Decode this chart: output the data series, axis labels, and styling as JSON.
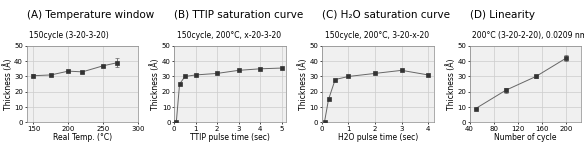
{
  "panel_A": {
    "title": "(A) Temperature window",
    "subtitle": "150cycle (3-20-3-20)",
    "x": [
      150,
      175,
      200,
      220,
      250,
      270
    ],
    "y": [
      30.5,
      31,
      33.5,
      33,
      37,
      39
    ],
    "yerr": [
      0.8,
      0.8,
      0.8,
      0.8,
      0.8,
      3
    ],
    "xlabel": "Real Temp. (°C)",
    "ylabel": "Thickness (Å)",
    "xlim": [
      140,
      295
    ],
    "ylim": [
      0,
      50
    ],
    "xticks": [
      150,
      200,
      250,
      300
    ],
    "yticks": [
      0,
      10,
      20,
      30,
      40,
      50
    ]
  },
  "panel_B": {
    "title": "(B) TTIP saturation curve",
    "subtitle": "150cycle, 200°C, x-20-3-20",
    "x": [
      0.1,
      0.25,
      0.5,
      1,
      2,
      3,
      4,
      5
    ],
    "y": [
      0.5,
      25,
      30,
      31,
      32,
      34,
      35,
      35.5
    ],
    "xlabel": "TTIP pulse time (sec)",
    "ylabel": "Thickness (Å)",
    "xlim": [
      0,
      5.2
    ],
    "ylim": [
      0,
      50
    ],
    "xticks": [
      0,
      1,
      2,
      3,
      4,
      5
    ],
    "yticks": [
      0,
      10,
      20,
      30,
      40,
      50
    ]
  },
  "panel_C": {
    "title": "(C) H₂O saturation curve",
    "subtitle": "150cycle, 200°C, 3-20-x-20",
    "x": [
      0.1,
      0.25,
      0.5,
      1,
      2,
      3,
      4
    ],
    "y": [
      0.5,
      15,
      28,
      30,
      32,
      34,
      31
    ],
    "xlabel": "H2O pulse time (sec)",
    "ylabel": "Thickness (Å)",
    "xlim": [
      0,
      4.2
    ],
    "ylim": [
      0,
      50
    ],
    "xticks": [
      0,
      1,
      2,
      3,
      4
    ],
    "yticks": [
      0,
      10,
      20,
      30,
      40,
      50
    ]
  },
  "panel_D": {
    "title": "(D) Linearity",
    "subtitle": "200°C (3-20-2-20), 0.0209 nm/cycle",
    "x": [
      50,
      100,
      150,
      200
    ],
    "y": [
      9,
      21,
      30,
      42
    ],
    "yerr": [
      0.5,
      1.5,
      1,
      2
    ],
    "xlabel": "Number of cycle",
    "ylabel": "Thickness (Å)",
    "xlim": [
      40,
      225
    ],
    "ylim": [
      0,
      50
    ],
    "xticks": [
      40,
      80,
      120,
      160,
      200
    ],
    "yticks": [
      0,
      10,
      20,
      30,
      40,
      50
    ]
  },
  "line_color": "#666666",
  "marker": "s",
  "markersize": 2.5,
  "markercolor": "#333333",
  "grid_color": "#cccccc",
  "bg_color": "#f0f0f0",
  "title_fontsize": 7.5,
  "subtitle_fontsize": 5.5,
  "label_fontsize": 5.5,
  "tick_fontsize": 5
}
